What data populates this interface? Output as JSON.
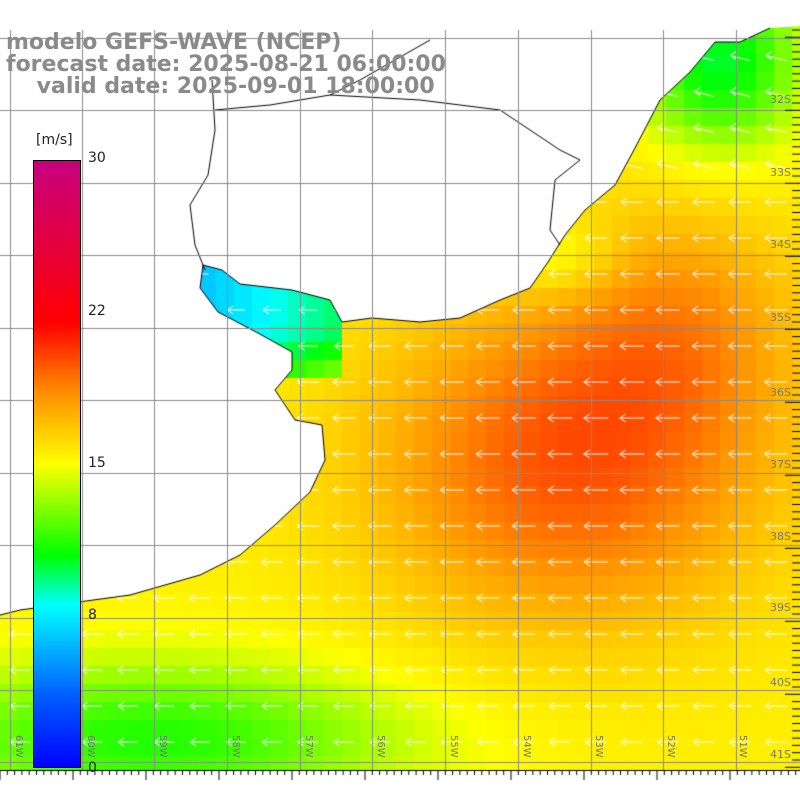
{
  "title": {
    "line1": "modelo GEFS-WAVE (NCEP)",
    "line2": "forecast date: 2025-08-21 06:00:00",
    "line3": "    valid date: 2025-09-01 18:00:00"
  },
  "colorbar": {
    "unit": "[m/s]",
    "ticks": [
      "30",
      "22",
      "15",
      "8",
      "0"
    ],
    "tick_values": [
      30,
      22,
      15,
      8,
      0
    ],
    "colors": {
      "0": "#0000ff",
      "8": "#00ffff",
      "11": "#00ff00",
      "15": "#ffff00",
      "22": "#ff3000",
      "30": "#c8007f"
    }
  },
  "axes": {
    "lat_labels": [
      "32S",
      "33S",
      "34S",
      "35S",
      "36S",
      "37S",
      "38S",
      "39S",
      "40S",
      "41S"
    ],
    "lon_labels": [
      "61W",
      "60W",
      "59W",
      "58W",
      "57W",
      "56W",
      "55W",
      "54W",
      "53W",
      "52W",
      "51W"
    ]
  }
}
